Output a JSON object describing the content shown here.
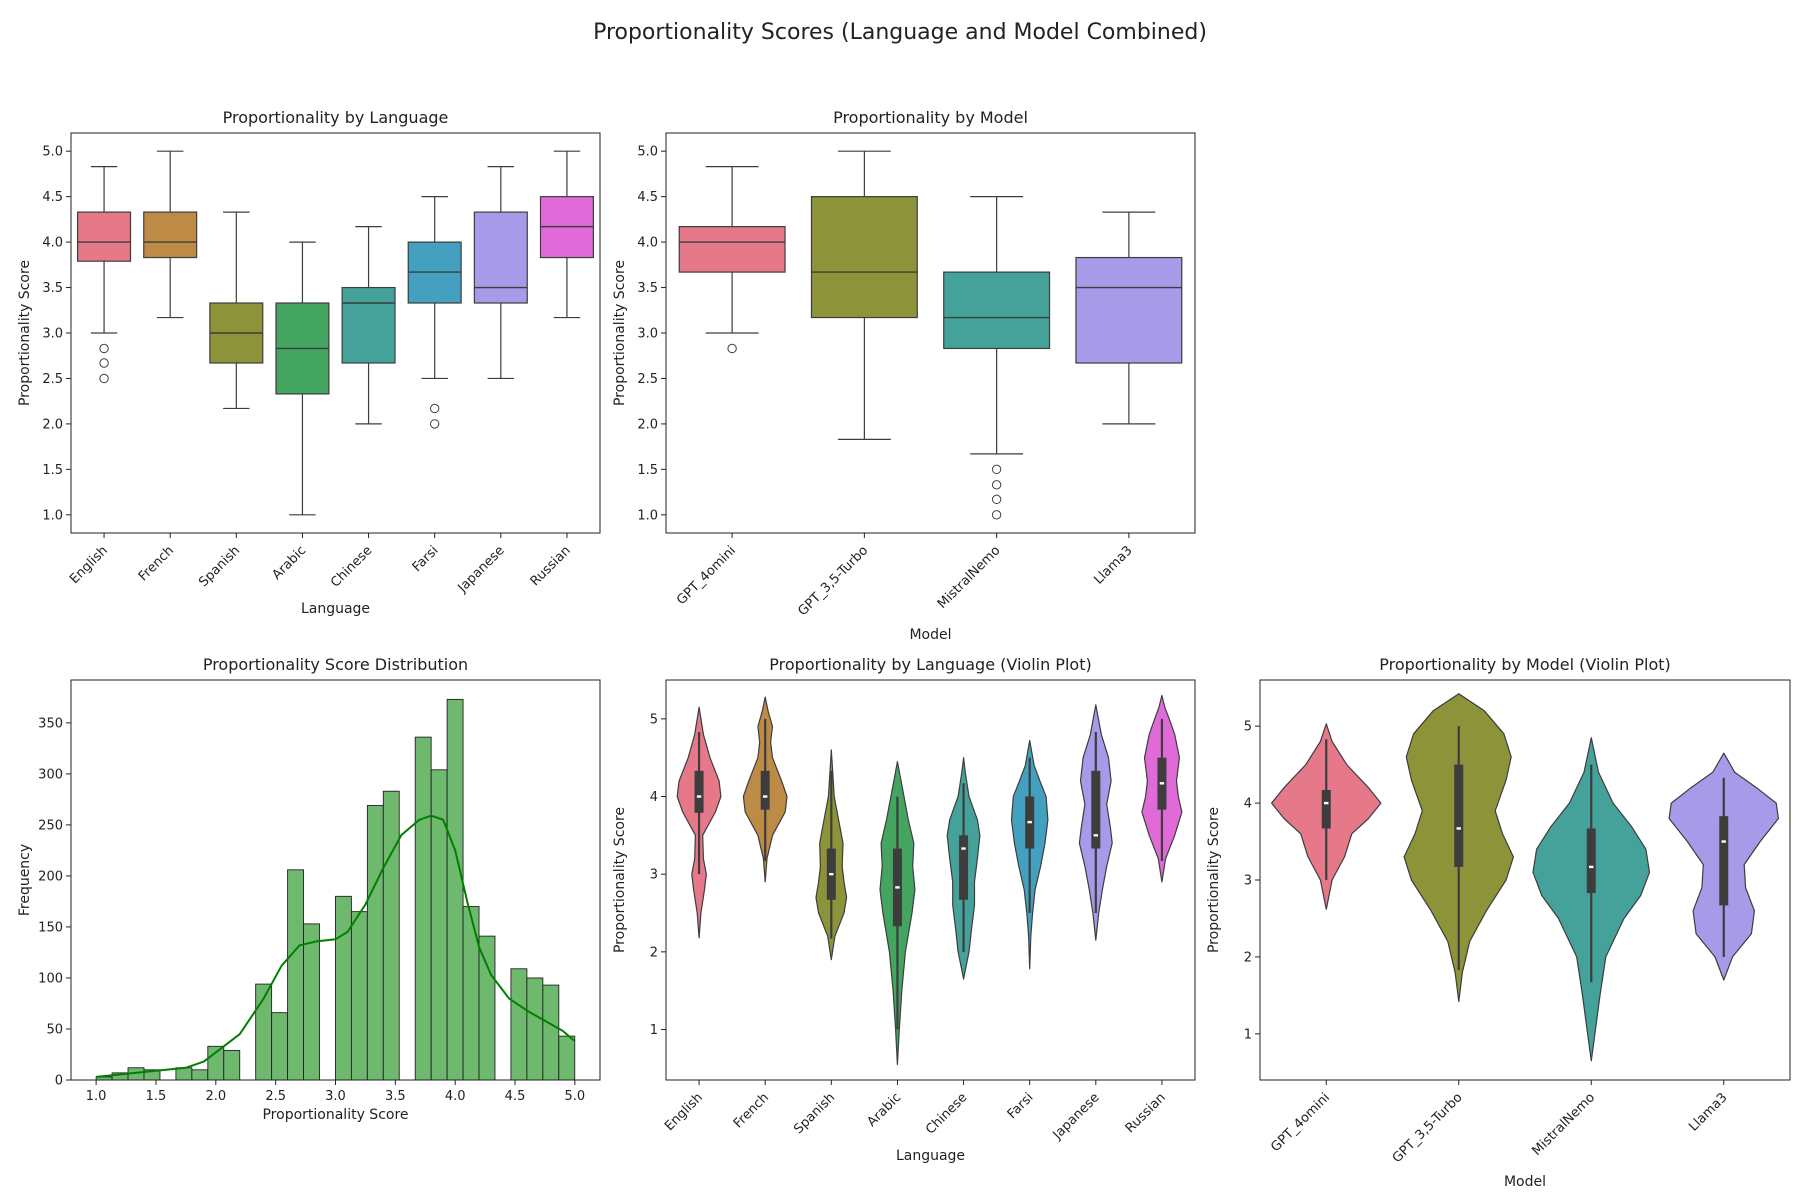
{
  "title": "Proportionality Scores (Language and Model Combined)",
  "colors": {
    "English": "#e5798a",
    "French": "#bd8b45",
    "Spanish": "#8c9339",
    "Arabic": "#43a560",
    "Chinese": "#45a29a",
    "Farsi": "#44a0c1",
    "Japanese": "#a79ae9",
    "Russian": "#e06bd8",
    "GPT_4omini": "#e5798a",
    "GPT_3,5-Turbo": "#8c9339",
    "MistralNemo": "#44a29a",
    "Llama3": "#a79ae9",
    "hist_bar": "#6fb96f",
    "kde_line": "#008000"
  },
  "chart_data": [
    {
      "id": "box-language",
      "type": "box",
      "title": "Proportionality by Language",
      "xlabel": "Language",
      "ylabel": "Proportionality Score",
      "ylim": [
        0.8,
        5.2
      ],
      "yticks": [
        1.0,
        1.5,
        2.0,
        2.5,
        3.0,
        3.5,
        4.0,
        4.5,
        5.0
      ],
      "ytick_labels": [
        "1.0",
        "1.5",
        "2.0",
        "2.5",
        "3.0",
        "3.5",
        "4.0",
        "4.5",
        "5.0"
      ],
      "categories": [
        "English",
        "French",
        "Spanish",
        "Arabic",
        "Chinese",
        "Farsi",
        "Japanese",
        "Russian"
      ],
      "boxes": [
        {
          "q1": 3.79,
          "median": 4.0,
          "q3": 4.33,
          "whislo": 3.0,
          "whishi": 4.83,
          "fliers": [
            2.83,
            2.67,
            2.5
          ]
        },
        {
          "q1": 3.83,
          "median": 4.0,
          "q3": 4.33,
          "whislo": 3.17,
          "whishi": 5.0,
          "fliers": []
        },
        {
          "q1": 2.67,
          "median": 3.0,
          "q3": 3.33,
          "whislo": 2.17,
          "whishi": 4.33,
          "fliers": []
        },
        {
          "q1": 2.33,
          "median": 2.83,
          "q3": 3.33,
          "whislo": 1.0,
          "whishi": 4.0,
          "fliers": []
        },
        {
          "q1": 2.67,
          "median": 3.33,
          "q3": 3.5,
          "whislo": 2.0,
          "whishi": 4.17,
          "fliers": []
        },
        {
          "q1": 3.33,
          "median": 3.67,
          "q3": 4.0,
          "whislo": 2.5,
          "whishi": 4.5,
          "fliers": [
            2.17,
            2.0
          ]
        },
        {
          "q1": 3.33,
          "median": 3.5,
          "q3": 4.33,
          "whislo": 2.5,
          "whishi": 4.83,
          "fliers": []
        },
        {
          "q1": 3.83,
          "median": 4.17,
          "q3": 4.5,
          "whislo": 3.17,
          "whishi": 5.0,
          "fliers": []
        }
      ]
    },
    {
      "id": "box-model",
      "type": "box",
      "title": "Proportionality by Model",
      "xlabel": "Model",
      "ylabel": "Proportionality Score",
      "ylim": [
        0.8,
        5.2
      ],
      "yticks": [
        1.0,
        1.5,
        2.0,
        2.5,
        3.0,
        3.5,
        4.0,
        4.5,
        5.0
      ],
      "ytick_labels": [
        "1.0",
        "1.5",
        "2.0",
        "2.5",
        "3.0",
        "3.5",
        "4.0",
        "4.5",
        "5.0"
      ],
      "categories": [
        "GPT_4omini",
        "GPT_3,5-Turbo",
        "MistralNemo",
        "Llama3"
      ],
      "boxes": [
        {
          "q1": 3.67,
          "median": 4.0,
          "q3": 4.17,
          "whislo": 3.0,
          "whishi": 4.83,
          "fliers": [
            2.83
          ]
        },
        {
          "q1": 3.17,
          "median": 3.67,
          "q3": 4.5,
          "whislo": 1.83,
          "whishi": 5.0,
          "fliers": []
        },
        {
          "q1": 2.83,
          "median": 3.17,
          "q3": 3.67,
          "whislo": 1.67,
          "whishi": 4.5,
          "fliers": [
            1.5,
            1.33,
            1.17,
            1.0
          ]
        },
        {
          "q1": 2.67,
          "median": 3.5,
          "q3": 3.83,
          "whislo": 2.0,
          "whishi": 4.33,
          "fliers": []
        }
      ]
    },
    {
      "id": "histogram",
      "type": "bar",
      "title": "Proportionality Score Distribution",
      "xlabel": "Proportionality Score",
      "ylabel": "Frequency",
      "xlim": [
        0.79,
        5.21
      ],
      "ylim": [
        0,
        392
      ],
      "xticks": [
        1.0,
        1.5,
        2.0,
        2.5,
        3.0,
        3.5,
        4.0,
        4.5,
        5.0
      ],
      "xtick_labels": [
        "1.0",
        "1.5",
        "2.0",
        "2.5",
        "3.0",
        "3.5",
        "4.0",
        "4.5",
        "5.0"
      ],
      "yticks": [
        0,
        50,
        100,
        150,
        200,
        250,
        300,
        350
      ],
      "ytick_labels": [
        "0",
        "50",
        "100",
        "150",
        "200",
        "250",
        "300",
        "350"
      ],
      "bin_start": 1.0,
      "bin_width": 0.1333,
      "values": [
        3,
        7,
        12,
        10,
        0,
        12,
        10,
        33,
        29,
        0,
        94,
        66,
        206,
        153,
        0,
        180,
        165,
        269,
        283,
        0,
        336,
        304,
        373,
        170,
        141,
        0,
        109,
        100,
        93,
        43
      ],
      "kde": {
        "x": [
          1.0,
          1.25,
          1.5,
          1.75,
          1.9,
          2.0,
          2.2,
          2.4,
          2.55,
          2.7,
          2.85,
          3.0,
          3.1,
          3.25,
          3.4,
          3.55,
          3.7,
          3.8,
          3.9,
          4.0,
          4.1,
          4.2,
          4.3,
          4.45,
          4.6,
          4.75,
          4.9,
          5.0
        ],
        "y": [
          3,
          6,
          9,
          12,
          18,
          27,
          45,
          80,
          112,
          132,
          136,
          138,
          145,
          172,
          208,
          240,
          255,
          259,
          255,
          225,
          175,
          130,
          103,
          80,
          68,
          58,
          48,
          38
        ]
      }
    },
    {
      "id": "violin-language",
      "type": "violin",
      "title": "Proportionality by Language (Violin Plot)",
      "xlabel": "Language",
      "ylabel": "Proportionality Score",
      "ylim": [
        0.35,
        5.5
      ],
      "yticks": [
        1,
        2,
        3,
        4,
        5
      ],
      "ytick_labels": [
        "1",
        "2",
        "3",
        "4",
        "5"
      ],
      "categories": [
        "English",
        "French",
        "Spanish",
        "Arabic",
        "Chinese",
        "Farsi",
        "Japanese",
        "Russian"
      ],
      "violins": [
        {
          "ymin": 2.18,
          "ymax": 5.15,
          "profile": [
            [
              2.18,
              0.0
            ],
            [
              2.5,
              0.05
            ],
            [
              2.8,
              0.15
            ],
            [
              3.0,
              0.2
            ],
            [
              3.2,
              0.12
            ],
            [
              3.5,
              0.1
            ],
            [
              3.8,
              0.45
            ],
            [
              4.0,
              0.6
            ],
            [
              4.2,
              0.55
            ],
            [
              4.5,
              0.3
            ],
            [
              4.8,
              0.12
            ],
            [
              5.15,
              0.0
            ]
          ],
          "q1": 3.79,
          "median": 4.0,
          "q3": 4.33,
          "wlo": 3.0,
          "whi": 4.83
        },
        {
          "ymin": 2.9,
          "ymax": 5.28,
          "profile": [
            [
              2.9,
              0.0
            ],
            [
              3.2,
              0.05
            ],
            [
              3.5,
              0.2
            ],
            [
              3.8,
              0.55
            ],
            [
              4.0,
              0.6
            ],
            [
              4.2,
              0.45
            ],
            [
              4.5,
              0.2
            ],
            [
              4.7,
              0.15
            ],
            [
              4.9,
              0.2
            ],
            [
              5.1,
              0.08
            ],
            [
              5.28,
              0.0
            ]
          ],
          "q1": 3.83,
          "median": 4.0,
          "q3": 4.33,
          "wlo": 3.17,
          "whi": 5.0
        },
        {
          "ymin": 1.9,
          "ymax": 4.6,
          "profile": [
            [
              1.9,
              0.0
            ],
            [
              2.2,
              0.1
            ],
            [
              2.5,
              0.35
            ],
            [
              2.7,
              0.42
            ],
            [
              2.9,
              0.35
            ],
            [
              3.1,
              0.3
            ],
            [
              3.4,
              0.32
            ],
            [
              3.7,
              0.2
            ],
            [
              4.0,
              0.08
            ],
            [
              4.3,
              0.04
            ],
            [
              4.6,
              0.0
            ]
          ],
          "q1": 2.67,
          "median": 3.0,
          "q3": 3.33,
          "wlo": 2.17,
          "whi": 4.33
        },
        {
          "ymin": 0.55,
          "ymax": 4.45,
          "profile": [
            [
              0.55,
              0.0
            ],
            [
              1.0,
              0.05
            ],
            [
              1.5,
              0.12
            ],
            [
              2.0,
              0.22
            ],
            [
              2.5,
              0.4
            ],
            [
              2.8,
              0.48
            ],
            [
              3.1,
              0.42
            ],
            [
              3.4,
              0.45
            ],
            [
              3.7,
              0.3
            ],
            [
              4.0,
              0.18
            ],
            [
              4.3,
              0.06
            ],
            [
              4.45,
              0.0
            ]
          ],
          "q1": 2.33,
          "median": 2.83,
          "q3": 3.33,
          "wlo": 1.0,
          "whi": 4.0
        },
        {
          "ymin": 1.65,
          "ymax": 4.5,
          "profile": [
            [
              1.65,
              0.0
            ],
            [
              2.0,
              0.15
            ],
            [
              2.3,
              0.22
            ],
            [
              2.6,
              0.3
            ],
            [
              2.9,
              0.3
            ],
            [
              3.2,
              0.38
            ],
            [
              3.5,
              0.45
            ],
            [
              3.7,
              0.38
            ],
            [
              4.0,
              0.15
            ],
            [
              4.3,
              0.05
            ],
            [
              4.5,
              0.0
            ]
          ],
          "q1": 2.67,
          "median": 3.33,
          "q3": 3.5,
          "wlo": 2.0,
          "whi": 4.17
        },
        {
          "ymin": 1.78,
          "ymax": 4.72,
          "profile": [
            [
              1.78,
              0.0
            ],
            [
              2.2,
              0.03
            ],
            [
              2.5,
              0.08
            ],
            [
              2.8,
              0.15
            ],
            [
              3.1,
              0.3
            ],
            [
              3.4,
              0.42
            ],
            [
              3.7,
              0.5
            ],
            [
              4.0,
              0.45
            ],
            [
              4.2,
              0.28
            ],
            [
              4.4,
              0.12
            ],
            [
              4.72,
              0.0
            ]
          ],
          "q1": 3.33,
          "median": 3.67,
          "q3": 4.0,
          "wlo": 2.5,
          "whi": 4.5
        },
        {
          "ymin": 2.15,
          "ymax": 5.18,
          "profile": [
            [
              2.15,
              0.0
            ],
            [
              2.5,
              0.08
            ],
            [
              2.8,
              0.18
            ],
            [
              3.1,
              0.3
            ],
            [
              3.4,
              0.45
            ],
            [
              3.6,
              0.4
            ],
            [
              3.9,
              0.3
            ],
            [
              4.2,
              0.42
            ],
            [
              4.5,
              0.35
            ],
            [
              4.8,
              0.15
            ],
            [
              5.18,
              0.0
            ]
          ],
          "q1": 3.33,
          "median": 3.5,
          "q3": 4.33,
          "wlo": 2.5,
          "whi": 4.83
        },
        {
          "ymin": 2.9,
          "ymax": 5.3,
          "profile": [
            [
              2.9,
              0.0
            ],
            [
              3.2,
              0.1
            ],
            [
              3.5,
              0.35
            ],
            [
              3.8,
              0.55
            ],
            [
              4.0,
              0.45
            ],
            [
              4.2,
              0.4
            ],
            [
              4.5,
              0.48
            ],
            [
              4.8,
              0.35
            ],
            [
              5.0,
              0.2
            ],
            [
              5.15,
              0.08
            ],
            [
              5.3,
              0.0
            ]
          ],
          "q1": 3.83,
          "median": 4.17,
          "q3": 4.5,
          "wlo": 3.17,
          "whi": 5.0
        }
      ]
    },
    {
      "id": "violin-model",
      "type": "violin",
      "title": "Proportionality by Model (Violin Plot)",
      "xlabel": "Model",
      "ylabel": "Proportionality Score",
      "ylim": [
        0.4,
        5.6
      ],
      "yticks": [
        1,
        2,
        3,
        4,
        5
      ],
      "ytick_labels": [
        "1",
        "2",
        "3",
        "4",
        "5"
      ],
      "categories": [
        "GPT_4omini",
        "GPT_3,5-Turbo",
        "MistralNemo",
        "Llama3"
      ],
      "violins": [
        {
          "ymin": 2.62,
          "ymax": 5.03,
          "profile": [
            [
              2.62,
              0.0
            ],
            [
              3.0,
              0.08
            ],
            [
              3.3,
              0.25
            ],
            [
              3.6,
              0.35
            ],
            [
              3.8,
              0.58
            ],
            [
              4.0,
              0.75
            ],
            [
              4.2,
              0.58
            ],
            [
              4.5,
              0.28
            ],
            [
              4.8,
              0.08
            ],
            [
              5.03,
              0.0
            ]
          ],
          "q1": 3.67,
          "median": 4.0,
          "q3": 4.17,
          "wlo": 3.0,
          "whi": 4.83
        },
        {
          "ymin": 1.42,
          "ymax": 5.42,
          "profile": [
            [
              1.42,
              0.0
            ],
            [
              1.8,
              0.05
            ],
            [
              2.2,
              0.15
            ],
            [
              2.6,
              0.38
            ],
            [
              3.0,
              0.65
            ],
            [
              3.3,
              0.75
            ],
            [
              3.6,
              0.6
            ],
            [
              3.9,
              0.5
            ],
            [
              4.3,
              0.65
            ],
            [
              4.6,
              0.72
            ],
            [
              4.9,
              0.62
            ],
            [
              5.2,
              0.35
            ],
            [
              5.42,
              0.0
            ]
          ],
          "q1": 3.17,
          "median": 3.67,
          "q3": 4.5,
          "wlo": 1.83,
          "whi": 5.0
        },
        {
          "ymin": 0.65,
          "ymax": 4.85,
          "profile": [
            [
              0.65,
              0.0
            ],
            [
              1.0,
              0.05
            ],
            [
              1.5,
              0.12
            ],
            [
              2.0,
              0.2
            ],
            [
              2.5,
              0.45
            ],
            [
              2.8,
              0.68
            ],
            [
              3.1,
              0.8
            ],
            [
              3.4,
              0.75
            ],
            [
              3.7,
              0.55
            ],
            [
              4.0,
              0.3
            ],
            [
              4.4,
              0.1
            ],
            [
              4.85,
              0.0
            ]
          ],
          "q1": 2.83,
          "median": 3.17,
          "q3": 3.67,
          "wlo": 1.67,
          "whi": 4.5
        },
        {
          "ymin": 1.7,
          "ymax": 4.65,
          "profile": [
            [
              1.7,
              0.0
            ],
            [
              2.0,
              0.12
            ],
            [
              2.3,
              0.38
            ],
            [
              2.6,
              0.42
            ],
            [
              2.9,
              0.3
            ],
            [
              3.2,
              0.28
            ],
            [
              3.5,
              0.5
            ],
            [
              3.8,
              0.75
            ],
            [
              4.0,
              0.72
            ],
            [
              4.2,
              0.45
            ],
            [
              4.4,
              0.15
            ],
            [
              4.65,
              0.0
            ]
          ],
          "q1": 2.67,
          "median": 3.5,
          "q3": 3.83,
          "wlo": 2.0,
          "whi": 4.33
        }
      ]
    }
  ]
}
